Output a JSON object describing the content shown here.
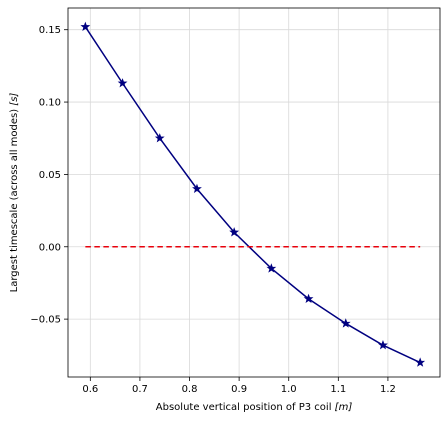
{
  "chart_data": {
    "type": "line",
    "title": "",
    "xlabel_main": "Absolute vertical position of P3 coil ",
    "xlabel_unit": "[m]",
    "ylabel_main": "Largest timescale (across all modes) ",
    "ylabel_unit": "[s]",
    "xlim": [
      0.555,
      1.305
    ],
    "ylim": [
      -0.09,
      0.165
    ],
    "xticks": [
      0.6,
      0.7,
      0.8,
      0.9,
      1.0,
      1.1,
      1.2
    ],
    "xtick_labels": [
      "0.6",
      "0.7",
      "0.8",
      "0.9",
      "1.0",
      "1.1",
      "1.2"
    ],
    "yticks": [
      -0.05,
      0.0,
      0.05,
      0.1,
      0.15
    ],
    "ytick_labels": [
      "−0.05",
      "0.00",
      "0.05",
      "0.10",
      "0.15"
    ],
    "grid": true,
    "series": [
      {
        "style": "solid-star",
        "color": "#000080",
        "x": [
          0.59,
          0.665,
          0.74,
          0.815,
          0.89,
          0.965,
          1.04,
          1.115,
          1.19,
          1.265
        ],
        "y": [
          0.152,
          0.113,
          0.075,
          0.04,
          0.01,
          -0.015,
          -0.036,
          -0.053,
          -0.068,
          -0.08
        ]
      },
      {
        "style": "dashed",
        "color": "#e8000b",
        "x": [
          0.59,
          1.265
        ],
        "y": [
          0.0,
          0.0
        ]
      }
    ]
  }
}
